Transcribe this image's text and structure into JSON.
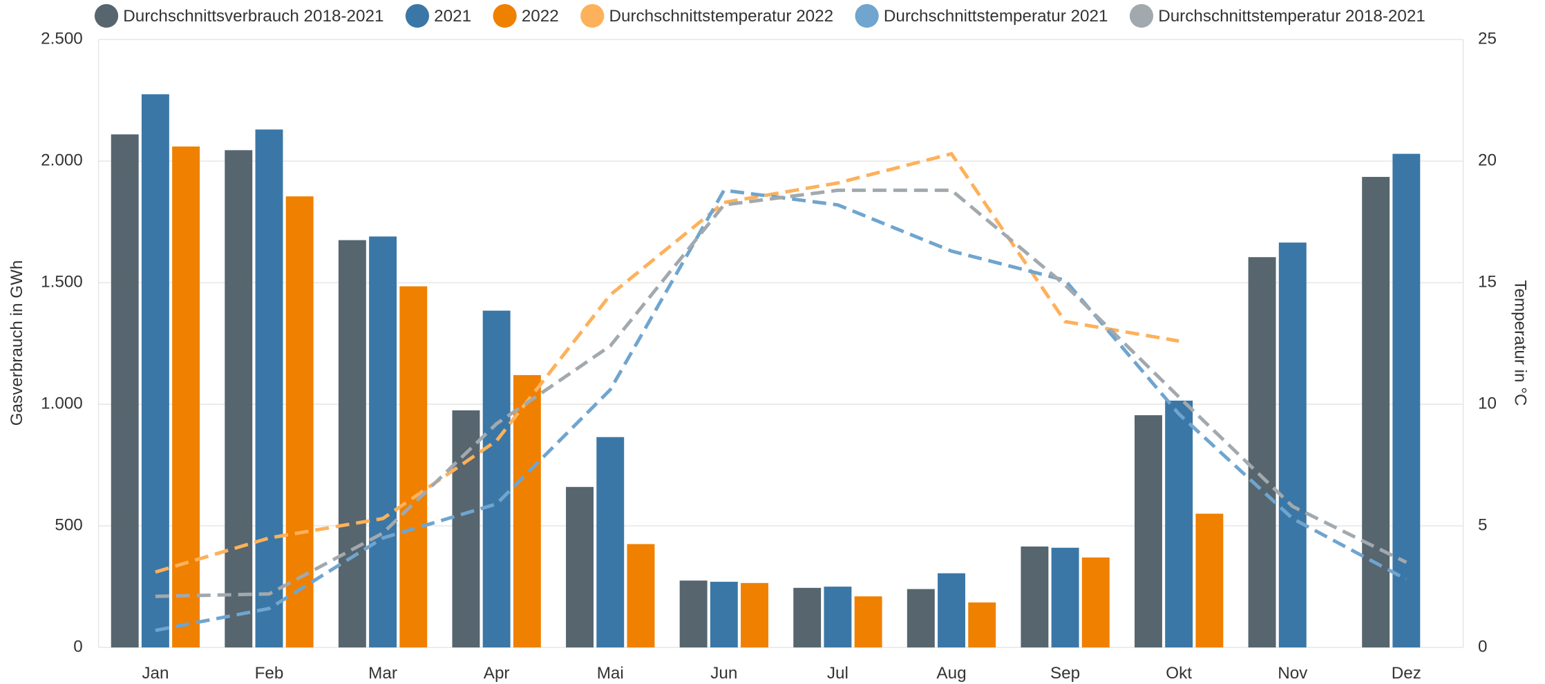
{
  "chart_data": {
    "type": "bar",
    "ylabel": "Gasverbrauch in GWh",
    "y2label": "Temperatur in °C",
    "categories": [
      "Jan",
      "Feb",
      "Mar",
      "Apr",
      "Mai",
      "Jun",
      "Jul",
      "Aug",
      "Sep",
      "Okt",
      "Nov",
      "Dez"
    ],
    "series": [
      {
        "name": "Durchschnittsverbrauch 2018-2021",
        "type": "bar",
        "color": "#56656e",
        "values": [
          2110,
          2045,
          1675,
          975,
          660,
          275,
          245,
          240,
          415,
          955,
          1605,
          1935
        ]
      },
      {
        "name": "2021",
        "type": "bar",
        "color": "#3a77a6",
        "values": [
          2275,
          2130,
          1690,
          1385,
          865,
          270,
          250,
          305,
          410,
          1015,
          1665,
          2030
        ]
      },
      {
        "name": "2022",
        "type": "bar",
        "color": "#f08000",
        "values": [
          2060,
          1855,
          1485,
          1120,
          425,
          265,
          210,
          185,
          370,
          550,
          null,
          null
        ]
      },
      {
        "name": "Durchschnittstemperatur 2022",
        "type": "line",
        "axis": "y2",
        "color": "#fdb15a",
        "values": [
          3.1,
          4.5,
          5.3,
          8.5,
          14.5,
          18.3,
          19.1,
          20.3,
          13.4,
          12.6,
          null,
          null
        ]
      },
      {
        "name": "Durchschnittstemperatur 2021",
        "type": "line",
        "axis": "y2",
        "color": "#6fa5cf",
        "values": [
          0.7,
          1.6,
          4.5,
          5.9,
          10.6,
          18.8,
          18.2,
          16.3,
          15.1,
          9.6,
          5.3,
          2.8
        ]
      },
      {
        "name": "Durchschnittstemperatur 2018-2021",
        "type": "line",
        "axis": "y2",
        "color": "#a2a9ae",
        "values": [
          2.1,
          2.2,
          4.7,
          9.2,
          12.4,
          18.2,
          18.8,
          18.8,
          14.9,
          10.3,
          5.8,
          3.5
        ]
      }
    ],
    "ylim": [
      0,
      2500
    ],
    "yticks": [
      0,
      500,
      {
        "value": 1000,
        "label": "1.000"
      },
      {
        "value": 1500,
        "label": "1.500"
      },
      {
        "value": 2000,
        "label": "2.000"
      },
      {
        "value": 2500,
        "label": "2.500"
      }
    ],
    "y2lim": [
      0,
      25
    ],
    "y2ticks": [
      0,
      5,
      10,
      15,
      20,
      25
    ],
    "grid": true,
    "legend": "top"
  }
}
